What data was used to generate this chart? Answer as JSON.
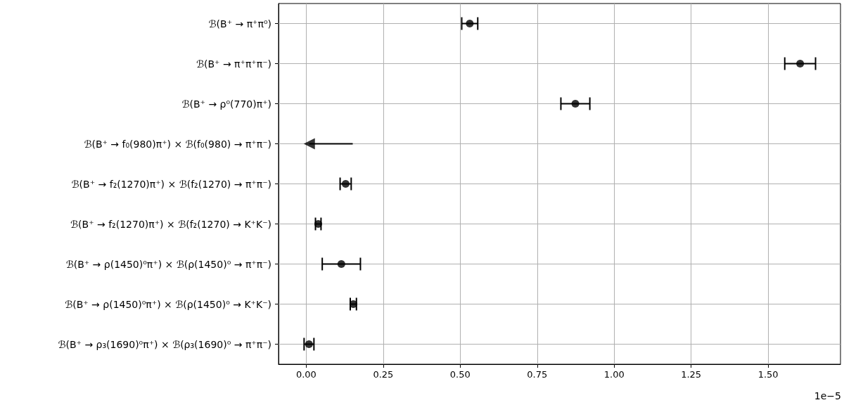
{
  "chart_data": {
    "type": "scatter",
    "orientation": "horizontal",
    "xlabel": "1e−5",
    "categories": [
      "ℬ(B⁺ → π⁺π⁰)",
      "ℬ(B⁺ → π⁺π⁺π⁻)",
      "ℬ(B⁺ → ρ⁰(770)π⁺)",
      "ℬ(B⁺ → f₀(980)π⁺) × ℬ(f₀(980) → π⁺π⁻)",
      "ℬ(B⁺ → f₂(1270)π⁺) × ℬ(f₂(1270) → π⁺π⁻)",
      "ℬ(B⁺ → f₂(1270)π⁺) × ℬ(f₂(1270) → K⁺K⁻)",
      "ℬ(B⁺ → ρ(1450)⁰π⁺) × ℬ(ρ(1450)⁰ → π⁺π⁻)",
      "ℬ(B⁺ → ρ(1450)⁰π⁺) × ℬ(ρ(1450)⁰ → K⁺K⁻)",
      "ℬ(B⁺ → ρ₃(1690)⁰π⁺) × ℬ(ρ₃(1690)⁰ → π⁺π⁻)"
    ],
    "series": [
      {
        "color": "#000000",
        "marker": "circle",
        "values": [
          0.531,
          1.604,
          0.874,
          null,
          0.128,
          0.039,
          0.114,
          0.153,
          0.009
        ],
        "errors": [
          0.026,
          0.05,
          0.047,
          null,
          0.018,
          0.009,
          0.062,
          0.01,
          0.016
        ]
      },
      {
        "color": "#000000",
        "marker": "triangle",
        "values": [
          null,
          null,
          null,
          0.01,
          null,
          null,
          null,
          null,
          null
        ],
        "errors": [
          null,
          null,
          null,
          [
            0.01,
            0.151
          ],
          null,
          null,
          null,
          null,
          null
        ]
      }
    ],
    "xlim": [
      -0.09,
      1.735
    ],
    "xticks": [
      {
        "value": 0,
        "label": "0.00"
      },
      {
        "value": 0.25,
        "label": "0.25"
      },
      {
        "value": 0.5,
        "label": "0.50"
      },
      {
        "value": 0.75,
        "label": "0.75"
      },
      {
        "value": 1,
        "label": "1.00"
      },
      {
        "value": 1.25,
        "label": "1.25"
      },
      {
        "value": 1.5,
        "label": "1.50"
      }
    ],
    "grid": true
  }
}
